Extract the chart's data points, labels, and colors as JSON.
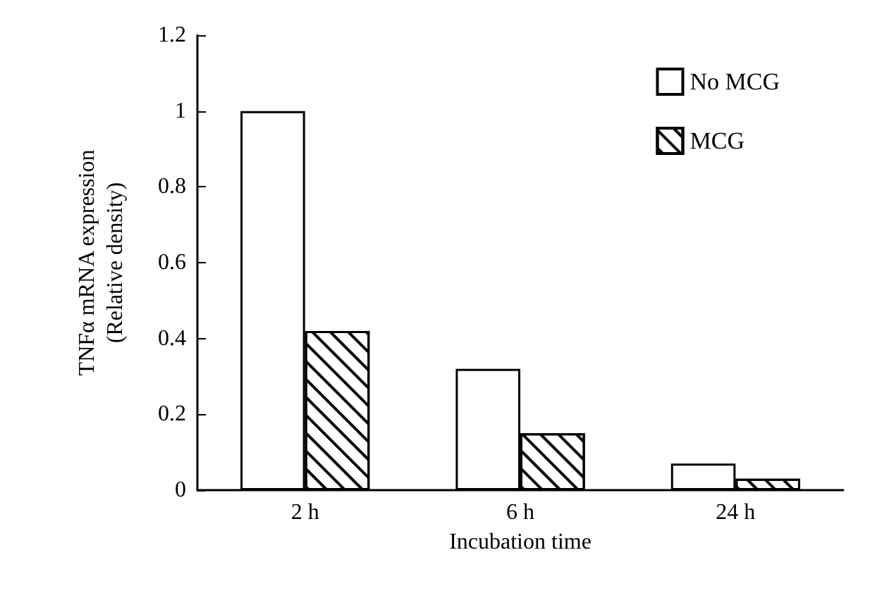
{
  "chart_data": {
    "type": "bar",
    "xlabel": "Incubation time",
    "ylabel": "TNFα mRNA expression\n(Relative density)",
    "categories": [
      "2 h",
      "6 h",
      "24 h"
    ],
    "series": [
      {
        "name": "No MCG",
        "color": "#ffffff",
        "values": [
          1.0,
          0.32,
          0.07
        ]
      },
      {
        "name": "MCG",
        "color": "#ffffff",
        "values": [
          0.42,
          0.15,
          0.03
        ]
      }
    ],
    "ylim": [
      0,
      1.2
    ],
    "yticks": [
      0,
      0.2,
      0.4,
      0.6,
      0.8,
      1,
      1.2
    ],
    "grid": false,
    "legend": "top right"
  }
}
